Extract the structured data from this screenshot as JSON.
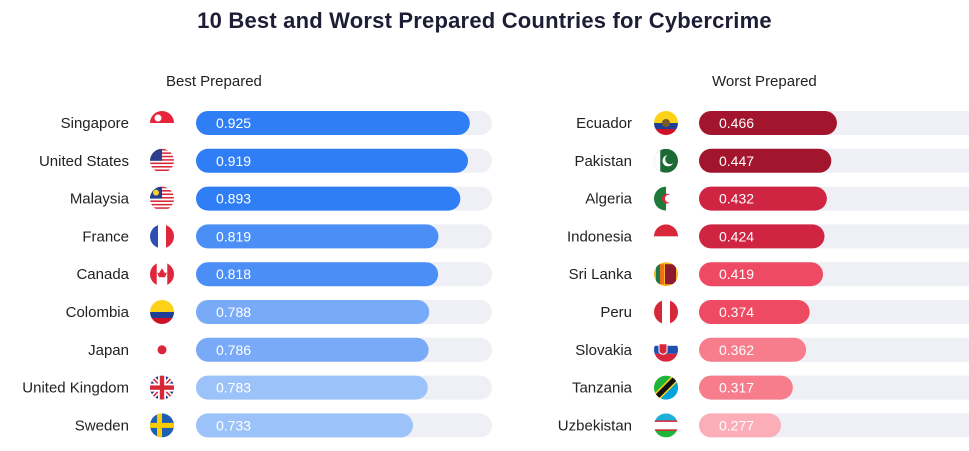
{
  "chart_data": {
    "type": "bar",
    "title": "10 Best and Worst Prepared Countries for Cybercrime",
    "xlim": [
      0,
      1
    ],
    "panels": [
      {
        "name": "Best Prepared",
        "rows": [
          {
            "country": "Singapore",
            "value": 0.925,
            "label": "0.925",
            "color": "#2f7ef6",
            "flag": "singapore-flag"
          },
          {
            "country": "United States",
            "value": 0.919,
            "label": "0.919",
            "color": "#2f7ef6",
            "flag": "usa-flag"
          },
          {
            "country": "Malaysia",
            "value": 0.893,
            "label": "0.893",
            "color": "#2f7ef6",
            "flag": "malaysia-flag"
          },
          {
            "country": "France",
            "value": 0.819,
            "label": "0.819",
            "color": "#4b8ff6",
            "flag": "france-flag"
          },
          {
            "country": "Canada",
            "value": 0.818,
            "label": "0.818",
            "color": "#4b8ff6",
            "flag": "canada-flag"
          },
          {
            "country": "Colombia",
            "value": 0.788,
            "label": "0.788",
            "color": "#79aaf8",
            "flag": "colombia-flag"
          },
          {
            "country": "Japan",
            "value": 0.786,
            "label": "0.786",
            "color": "#79aaf8",
            "flag": "japan-flag"
          },
          {
            "country": "United Kingdom",
            "value": 0.783,
            "label": "0.783",
            "color": "#9cc2fa",
            "flag": "uk-flag"
          },
          {
            "country": "Sweden",
            "value": 0.733,
            "label": "0.733",
            "color": "#9cc2fa",
            "flag": "sweden-flag"
          }
        ]
      },
      {
        "name": "Worst Prepared",
        "rows": [
          {
            "country": "Ecuador",
            "value": 0.466,
            "label": "0.466",
            "color": "#a3152c",
            "flag": "ecuador-flag"
          },
          {
            "country": "Pakistan",
            "value": 0.447,
            "label": "0.447",
            "color": "#a3152c",
            "flag": "pakistan-flag"
          },
          {
            "country": "Algeria",
            "value": 0.432,
            "label": "0.432",
            "color": "#cf2542",
            "flag": "algeria-flag"
          },
          {
            "country": "Indonesia",
            "value": 0.424,
            "label": "0.424",
            "color": "#cf2542",
            "flag": "indonesia-flag"
          },
          {
            "country": "Sri Lanka",
            "value": 0.419,
            "label": "0.419",
            "color": "#ef4a63",
            "flag": "sri-lanka-flag"
          },
          {
            "country": "Peru",
            "value": 0.374,
            "label": "0.374",
            "color": "#ef4a63",
            "flag": "peru-flag"
          },
          {
            "country": "Slovakia",
            "value": 0.362,
            "label": "0.362",
            "color": "#f77c8c",
            "flag": "slovakia-flag"
          },
          {
            "country": "Tanzania",
            "value": 0.317,
            "label": "0.317",
            "color": "#f77c8c",
            "flag": "tanzania-flag"
          },
          {
            "country": "Uzbekistan",
            "value": 0.277,
            "label": "0.277",
            "color": "#fbadb8",
            "flag": "uzbekistan-flag"
          }
        ]
      }
    ],
    "track_color": "#eef0f6"
  }
}
